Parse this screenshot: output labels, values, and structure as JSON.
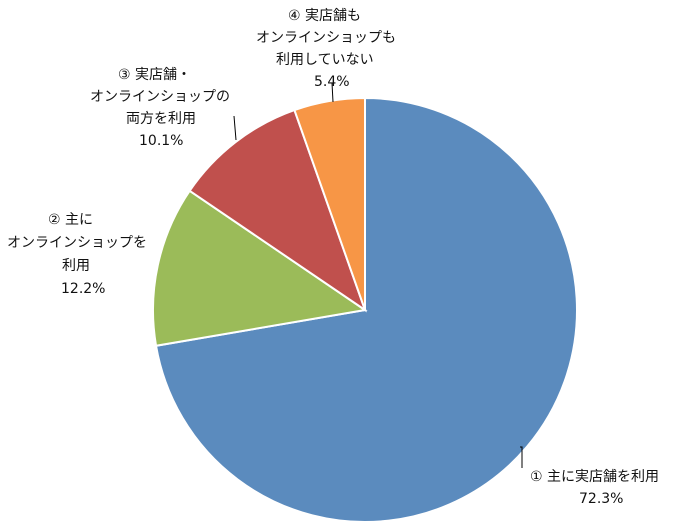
{
  "chart_data": {
    "type": "pie",
    "title": "",
    "start_angle_deg": 0,
    "direction": "clockwise",
    "slices": [
      {
        "label": "① 主に実店舗を利用",
        "value": 72.3,
        "value_label": "72.3%",
        "color": "#5B8BBE"
      },
      {
        "label": "② 主に オンラインショップを 利用",
        "value": 12.2,
        "value_label": "12.2%",
        "color": "#9BBB59"
      },
      {
        "label": "③ 実店舗・ オンラインショップの 両方を利用",
        "value": 10.1,
        "value_label": "10.1%",
        "color": "#C0504D"
      },
      {
        "label": "④ 実店舗も オンラインショップも 利用していない",
        "value": 5.4,
        "value_label": "5.4%",
        "color": "#F79646"
      }
    ],
    "labels": [
      {
        "lines": [
          "① 主に実店舗を利用",
          "72.3%"
        ]
      },
      {
        "lines": [
          "② 主に",
          "オンラインショップを",
          "利用",
          "12.2%"
        ]
      },
      {
        "lines": [
          "③ 実店舗・",
          "オンラインショップの",
          "両方を利用",
          "10.1%"
        ]
      },
      {
        "lines": [
          "④ 実店舗も",
          "オンラインショップも",
          "利用していない",
          "5.4%"
        ]
      }
    ]
  }
}
